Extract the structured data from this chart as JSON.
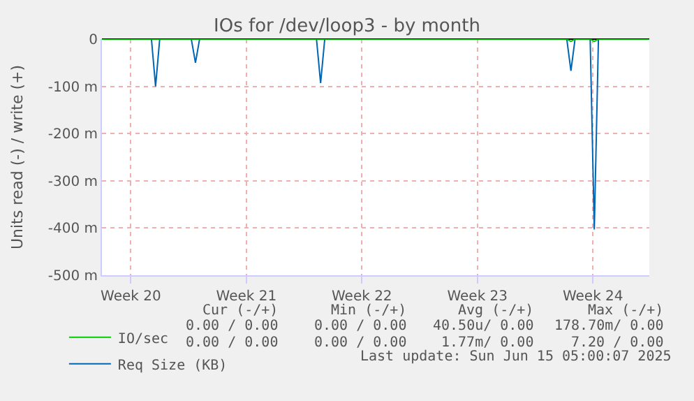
{
  "chart_data": {
    "type": "line",
    "title": "IOs for /dev/loop3 - by month",
    "ylabel": "Units read (-) / write (+)",
    "x": [
      "2025-05-14T00:00",
      "2025-05-17T00:00",
      "2025-05-17T06:00",
      "2025-05-17T12:00",
      "2025-05-19T10:00",
      "2025-05-19T16:00",
      "2025-05-19T22:00",
      "2025-05-27T00:00",
      "2025-05-27T06:00",
      "2025-05-27T12:00",
      "2025-06-11T04:00",
      "2025-06-11T10:00",
      "2025-06-11T16:00",
      "2025-06-12T14:00",
      "2025-06-12T20:00",
      "2025-06-13T02:00",
      "2025-06-16T04:00"
    ],
    "series": [
      {
        "name": "Req Size (KB)",
        "color": "#0066b3",
        "values": [
          0,
          0,
          -100,
          0,
          0,
          -50,
          0,
          0,
          -93,
          0,
          0,
          -67,
          0,
          0,
          -403,
          0,
          0
        ]
      },
      {
        "name": "IO/sec",
        "color": "#00cc00",
        "values": [
          0,
          0,
          0,
          0,
          0,
          0,
          0,
          0,
          0,
          0,
          0,
          -5,
          0,
          0,
          -5,
          0,
          0
        ]
      }
    ],
    "xlim": [
      "2025-05-14T00:00",
      "2025-06-16T04:00"
    ],
    "xticks": [
      {
        "value": "2025-05-15T18:00",
        "label": "Week 20"
      },
      {
        "value": "2025-05-22T18:00",
        "label": "Week 21"
      },
      {
        "value": "2025-05-29T18:00",
        "label": "Week 22"
      },
      {
        "value": "2025-06-05T18:00",
        "label": "Week 23"
      },
      {
        "value": "2025-06-12T18:00",
        "label": "Week 24"
      }
    ],
    "ylim": [
      -500,
      0
    ],
    "yticks": [
      {
        "value": 0,
        "label": "0"
      },
      {
        "value": -100,
        "label": "-100 m"
      },
      {
        "value": -200,
        "label": "-200 m"
      },
      {
        "value": -300,
        "label": "-300 m"
      },
      {
        "value": -400,
        "label": "-400 m"
      },
      {
        "value": -500,
        "label": "-500 m"
      }
    ],
    "grid": true,
    "legend": "bottom left",
    "marker": "none",
    "line_style": "solid",
    "annotations": [
      "Cur (-/+)",
      "Min (-/+)",
      "Avg (-/+)",
      "Max (-/+)",
      "0.00 / 0.00",
      "0.00 / 0.00",
      "40.50u/ 0.00",
      "178.70m/ 0.00",
      "0.00 / 0.00",
      "0.00 / 0.00",
      "1.77m/ 0.00",
      "7.20 / 0.00",
      "Last update: Sun Jun 15 05:00:07 2025"
    ]
  }
}
